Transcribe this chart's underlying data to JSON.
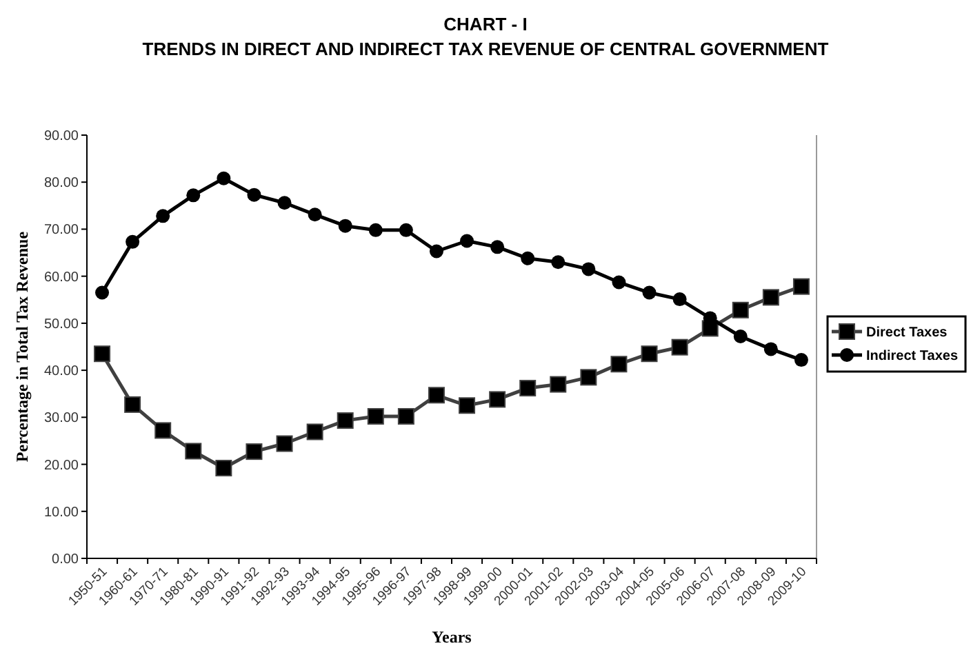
{
  "chart_data": {
    "type": "line",
    "title": "CHART - I",
    "subtitle": "TRENDS IN DIRECT AND INDIRECT TAX REVENUE OF CENTRAL GOVERNMENT",
    "xlabel": "Years",
    "ylabel": "Percentage in Total Tax Revenue",
    "categories": [
      "1950-51",
      "1960-61",
      "1970-71",
      "1980-81",
      "1990-91",
      "1991-92",
      "1992-93",
      "1993-94",
      "1994-95",
      "1995-96",
      "1996-97",
      "1997-98",
      "1998-99",
      "1999-00",
      "2000-01",
      "2001-02",
      "2002-03",
      "2003-04",
      "2004-05",
      "2005-06",
      "2006-07",
      "2007-08",
      "2008-09",
      "2009-10"
    ],
    "series": [
      {
        "name": "Direct Taxes",
        "color": "#404040",
        "marker": "square",
        "values": [
          43.5,
          32.7,
          27.2,
          22.8,
          19.2,
          22.7,
          24.4,
          26.9,
          29.3,
          30.2,
          30.2,
          34.7,
          32.5,
          33.8,
          36.2,
          37.0,
          38.5,
          41.3,
          43.5,
          44.9,
          48.9,
          52.8,
          55.5,
          57.8
        ]
      },
      {
        "name": "Indirect Taxes",
        "color": "#000000",
        "marker": "circle",
        "values": [
          56.5,
          67.3,
          72.8,
          77.2,
          80.8,
          77.3,
          75.6,
          73.1,
          70.7,
          69.8,
          69.8,
          65.3,
          67.5,
          66.2,
          63.8,
          63.0,
          61.5,
          58.7,
          56.5,
          55.1,
          51.1,
          47.2,
          44.5,
          42.2
        ]
      }
    ],
    "ylim": [
      0,
      90
    ],
    "yticks": [
      {
        "value": 0,
        "label": "0.00"
      },
      {
        "value": 10,
        "label": "10.00"
      },
      {
        "value": 20,
        "label": "20.00"
      },
      {
        "value": 30,
        "label": "30.00"
      },
      {
        "value": 40,
        "label": "40.00"
      },
      {
        "value": 50,
        "label": "50.00"
      },
      {
        "value": 60,
        "label": "60.00"
      },
      {
        "value": 70,
        "label": "70.00"
      },
      {
        "value": 80,
        "label": "80.00"
      },
      {
        "value": 90,
        "label": "90.00"
      }
    ],
    "grid": false,
    "legend": "right",
    "line_style": "solid"
  }
}
